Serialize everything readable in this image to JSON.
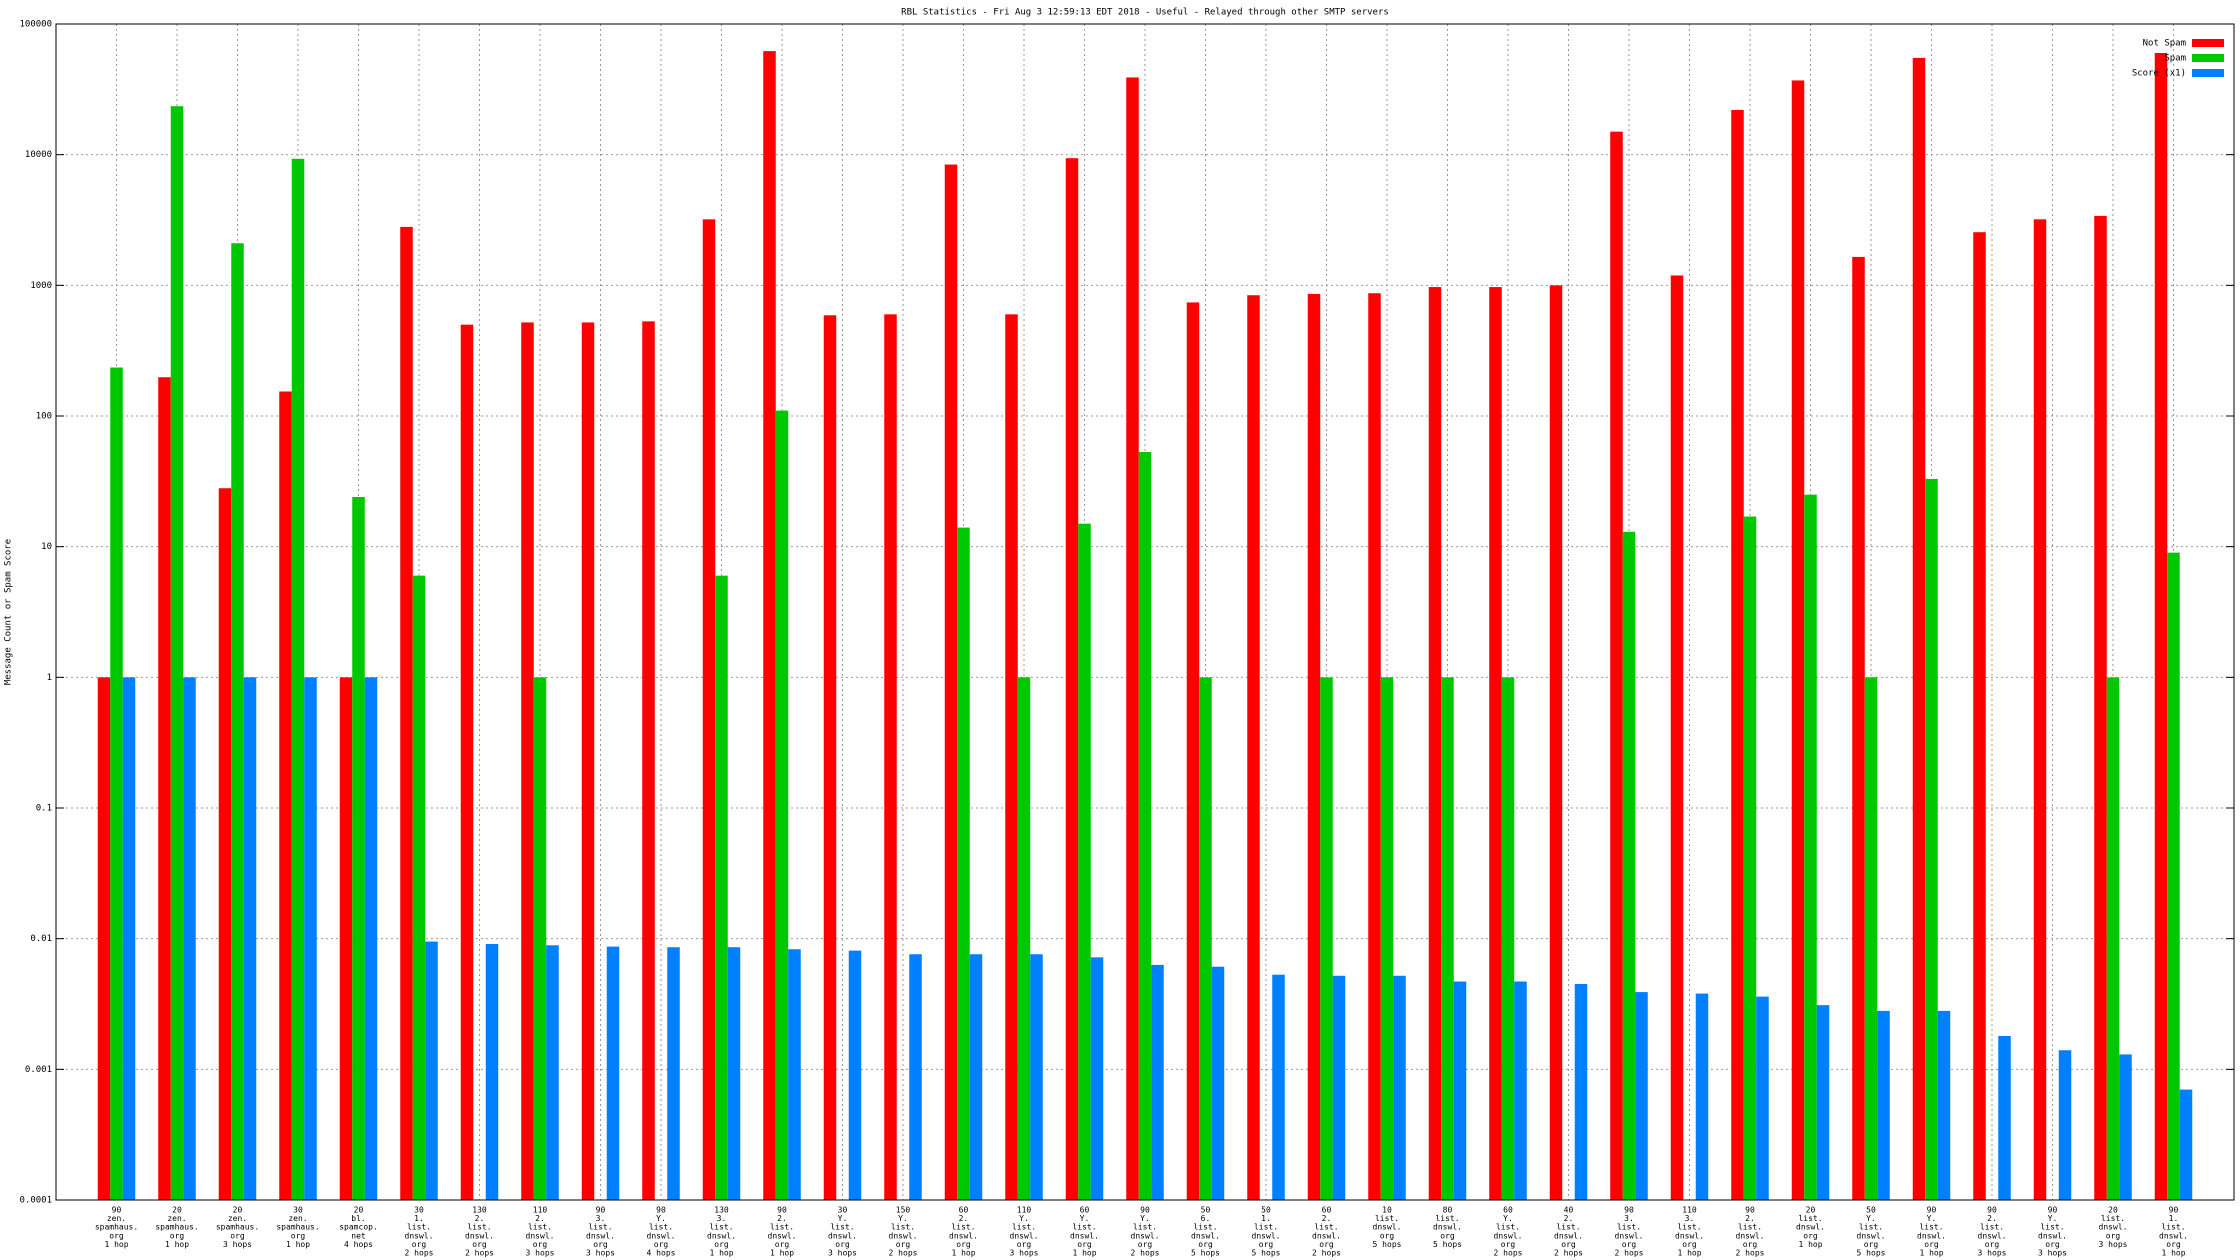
{
  "chart_data": {
    "type": "bar",
    "title": "RBL Statistics - Fri Aug  3 12:59:13 EDT 2018 - Useful - Relayed through other SMTP servers",
    "y_label": "Message Count or Spam Score",
    "log_y": true,
    "grid": true,
    "legend": "top-right",
    "ylim": [
      0.0001,
      100000
    ],
    "yticks": [
      0.0001,
      0.001,
      0.01,
      0.1,
      1,
      10,
      100,
      1000,
      10000,
      100000
    ],
    "categories": [
      [
        "90",
        "zen.",
        "spamhaus.",
        "org",
        "1 hop"
      ],
      [
        "20",
        "zen.",
        "spamhaus.",
        "org",
        "1 hop"
      ],
      [
        "20",
        "zen.",
        "spamhaus.",
        "org",
        "3 hops"
      ],
      [
        "30",
        "zen.",
        "spamhaus.",
        "org",
        "1 hop"
      ],
      [
        "20",
        "bl.",
        "spamcop.",
        "net",
        "4 hops"
      ],
      [
        "30",
        "1.",
        "list.",
        "dnswl.",
        "org",
        "2 hops"
      ],
      [
        "130",
        "2.",
        "list.",
        "dnswl.",
        "org",
        "2 hops"
      ],
      [
        "110",
        "2.",
        "list.",
        "dnswl.",
        "org",
        "3 hops"
      ],
      [
        "90",
        "3.",
        "list.",
        "dnswl.",
        "org",
        "3 hops"
      ],
      [
        "90",
        "Y.",
        "list.",
        "dnswl.",
        "org",
        "4 hops"
      ],
      [
        "130",
        "3.",
        "list.",
        "dnswl.",
        "org",
        "1 hop"
      ],
      [
        "90",
        "2.",
        "list.",
        "dnswl.",
        "org",
        "1 hop"
      ],
      [
        "30",
        "Y.",
        "list.",
        "dnswl.",
        "org",
        "3 hops"
      ],
      [
        "150",
        "Y.",
        "list.",
        "dnswl.",
        "org",
        "2 hops"
      ],
      [
        "60",
        "2.",
        "list.",
        "dnswl.",
        "org",
        "1 hop"
      ],
      [
        "110",
        "Y.",
        "list.",
        "dnswl.",
        "org",
        "3 hops"
      ],
      [
        "60",
        "Y.",
        "list.",
        "dnswl.",
        "org",
        "1 hop"
      ],
      [
        "90",
        "Y.",
        "list.",
        "dnswl.",
        "org",
        "2 hops"
      ],
      [
        "50",
        "6.",
        "list.",
        "dnswl.",
        "org",
        "5 hops"
      ],
      [
        "50",
        "1.",
        "list.",
        "dnswl.",
        "org",
        "5 hops"
      ],
      [
        "60",
        "2.",
        "list.",
        "dnswl.",
        "org",
        "2 hops"
      ],
      [
        "10",
        "list.",
        "dnswl.",
        "org",
        "5 hops"
      ],
      [
        "80",
        "list.",
        "dnswl.",
        "org",
        "5 hops"
      ],
      [
        "60",
        "Y.",
        "list.",
        "dnswl.",
        "org",
        "2 hops"
      ],
      [
        "40",
        "2.",
        "list.",
        "dnswl.",
        "org",
        "2 hops"
      ],
      [
        "90",
        "3.",
        "list.",
        "dnswl.",
        "org",
        "2 hops"
      ],
      [
        "110",
        "3.",
        "list.",
        "dnswl.",
        "org",
        "1 hop"
      ],
      [
        "90",
        "2.",
        "list.",
        "dnswl.",
        "org",
        "2 hops"
      ],
      [
        "20",
        "list.",
        "dnswl.",
        "org",
        "1 hop"
      ],
      [
        "50",
        "Y.",
        "list.",
        "dnswl.",
        "org",
        "5 hops"
      ],
      [
        "90",
        "Y.",
        "list.",
        "dnswl.",
        "org",
        "1 hop"
      ],
      [
        "90",
        "2.",
        "list.",
        "dnswl.",
        "org",
        "3 hops"
      ],
      [
        "90",
        "Y.",
        "list.",
        "dnswl.",
        "org",
        "3 hops"
      ],
      [
        "20",
        "list.",
        "dnswl.",
        "org",
        "3 hops"
      ],
      [
        "90",
        "1.",
        "list.",
        "dnswl.",
        "org",
        "1 hop"
      ]
    ],
    "series": [
      {
        "name": "Not Spam",
        "color": "#ff0000",
        "values": [
          1,
          198,
          28,
          154,
          1,
          2800,
          500,
          520,
          520,
          530,
          3200,
          62000,
          590,
          600,
          8400,
          600,
          9400,
          39000,
          740,
          840,
          860,
          870,
          970,
          970,
          1000,
          15000,
          1190,
          22000,
          37000,
          1650,
          55000,
          2550,
          3200,
          3400,
          60000
        ]
      },
      {
        "name": "Spam",
        "color": "#00c800",
        "values": [
          235,
          23500,
          2100,
          9300,
          24,
          6,
          null,
          1,
          null,
          null,
          6,
          110,
          null,
          null,
          14,
          1,
          15,
          53,
          1,
          null,
          1,
          1,
          1,
          1,
          null,
          13,
          null,
          17,
          25,
          1,
          33,
          null,
          null,
          1,
          9
        ]
      },
      {
        "name": "Score (x1)",
        "color": "#0080ff",
        "values": [
          1,
          1,
          1,
          1,
          1,
          0.0095,
          0.0091,
          0.0089,
          0.0087,
          0.0086,
          0.0086,
          0.0083,
          0.0081,
          0.0076,
          0.0076,
          0.0076,
          0.0072,
          0.0063,
          0.0061,
          0.0053,
          0.0052,
          0.0052,
          0.0047,
          0.0047,
          0.0045,
          0.0039,
          0.0038,
          0.0036,
          0.0031,
          0.0028,
          0.0028,
          0.0018,
          0.0014,
          0.0013,
          0.0007
        ]
      }
    ]
  }
}
